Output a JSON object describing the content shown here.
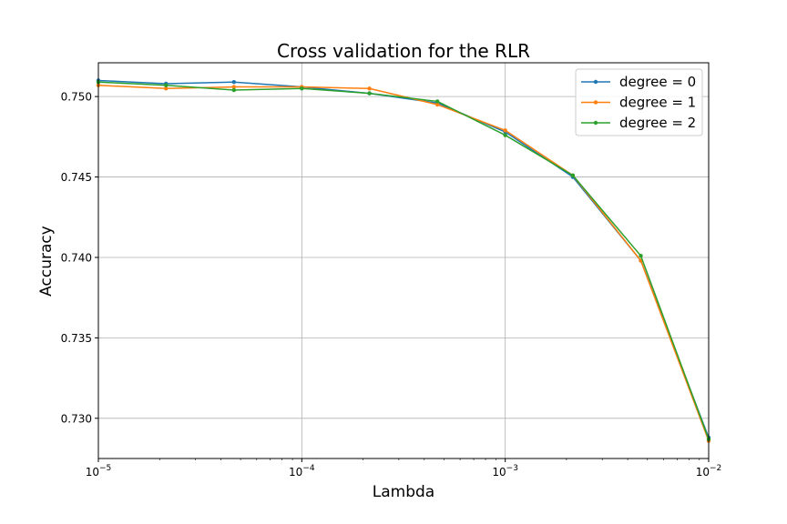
{
  "chart_data": {
    "type": "line",
    "title": "Cross validation for the RLR",
    "xlabel": "Lambda",
    "ylabel": "Accuracy",
    "xscale": "log",
    "xlim": [
      1e-05,
      0.01
    ],
    "ylim": [
      0.7275,
      0.7521
    ],
    "grid": true,
    "legend_position": "top-right",
    "x": [
      1e-05,
      2.15e-05,
      4.64e-05,
      0.0001,
      0.000215,
      0.000464,
      0.001,
      0.00215,
      0.00464,
      0.01
    ],
    "x_ticks": [
      {
        "value": 1e-05,
        "base": "10",
        "exp": "−5"
      },
      {
        "value": 0.0001,
        "base": "10",
        "exp": "−4"
      },
      {
        "value": 0.001,
        "base": "10",
        "exp": "−3"
      },
      {
        "value": 0.01,
        "base": "10",
        "exp": "−2"
      }
    ],
    "y_ticks": [
      "0.730",
      "0.735",
      "0.740",
      "0.745",
      "0.750"
    ],
    "series": [
      {
        "name": "degree = 0",
        "color": "#1f77b4",
        "values": [
          0.751,
          0.7508,
          0.7509,
          0.7506,
          0.7502,
          0.7496,
          0.7478,
          0.745,
          0.7398,
          0.7288
        ]
      },
      {
        "name": "degree = 1",
        "color": "#ff7f0e",
        "values": [
          0.7507,
          0.7505,
          0.7506,
          0.7506,
          0.7505,
          0.7495,
          0.7479,
          0.7451,
          0.7398,
          0.7286
        ]
      },
      {
        "name": "degree = 2",
        "color": "#2ca02c",
        "values": [
          0.7509,
          0.7507,
          0.7504,
          0.7505,
          0.7502,
          0.7497,
          0.7476,
          0.7451,
          0.7401,
          0.7287
        ]
      }
    ]
  }
}
